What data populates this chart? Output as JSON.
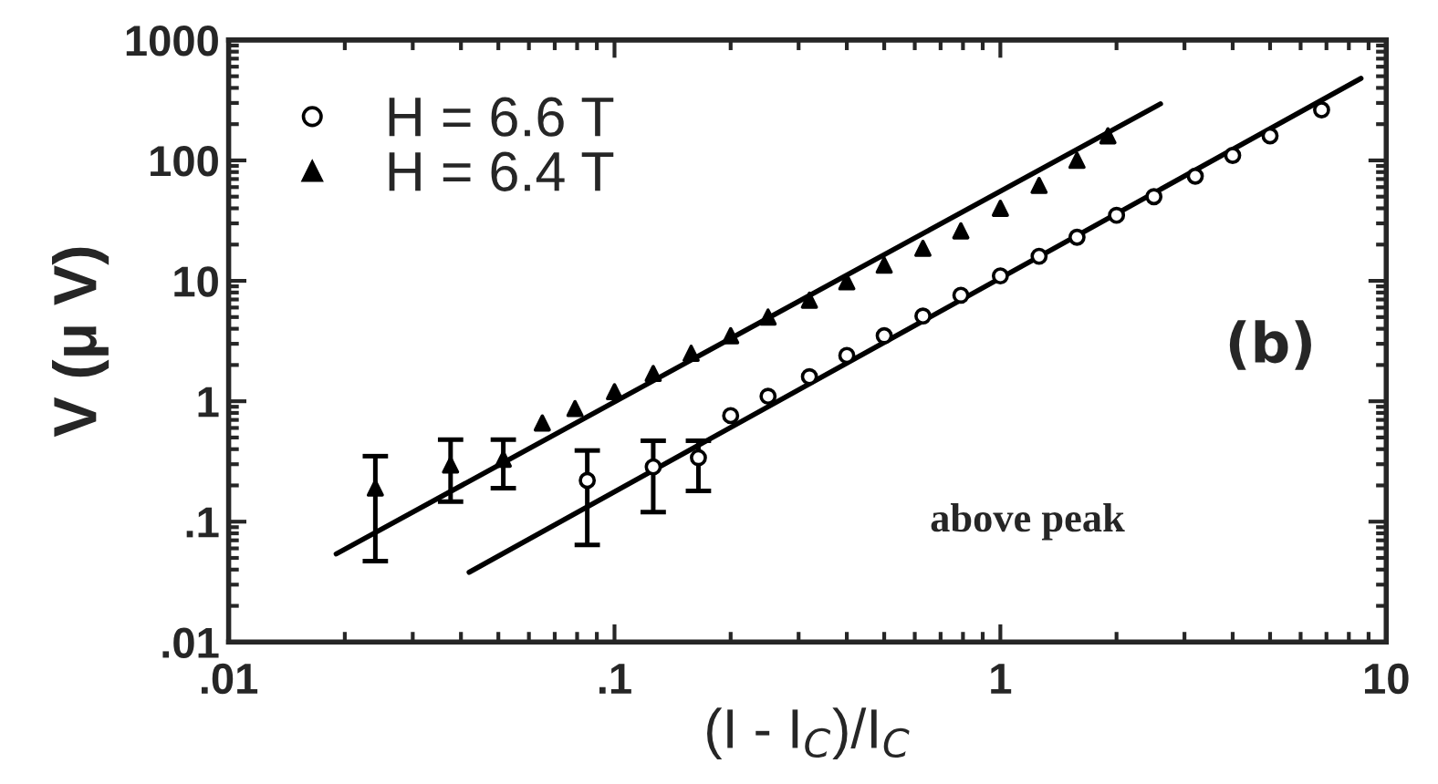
{
  "chart_data": {
    "type": "scatter",
    "xlabel": "(I - I$_{C}$)/I$_{C}$",
    "ylabel": "V (μ V)",
    "log": "xy",
    "grid": false,
    "legend": "top left",
    "xlim": [
      0.01,
      10
    ],
    "xticks": [
      {
        "value": 0.01,
        "label": ".01"
      },
      {
        "value": 0.1,
        "label": ".1"
      },
      1,
      10
    ],
    "ylim": [
      0.01,
      1000
    ],
    "yticks": [
      {
        "value": 0.01,
        "label": ".01"
      },
      {
        "value": 0.1,
        "label": ".1"
      },
      1,
      10,
      100,
      1000
    ],
    "annotations": [
      "(b)",
      "above peak"
    ],
    "series": [
      {
        "name": "H = 6.6 T",
        "marker": "circle",
        "color": "#000000",
        "x": [
          0.085,
          0.126,
          0.165,
          0.2,
          0.25,
          0.32,
          0.4,
          0.5,
          0.63,
          0.79,
          1,
          1.26,
          1.58,
          2,
          2.5,
          3.2,
          4,
          5,
          6.8
        ],
        "values": [
          0.22,
          0.285,
          0.34,
          0.76,
          1.1,
          1.6,
          2.4,
          3.5,
          5.1,
          7.6,
          11,
          16,
          23,
          35,
          50,
          74,
          110,
          160,
          263
        ],
        "errors": [
          [
            0.064,
            0.39
          ],
          [
            0.12,
            0.47
          ],
          [
            0.18,
            0.47
          ],
          null,
          null,
          null,
          null,
          null,
          null,
          null,
          null,
          null,
          null,
          null,
          null,
          null,
          null,
          null,
          null
        ]
      },
      {
        "name": "H = 6.4 T",
        "marker": "triangle",
        "color": "#000000",
        "x": [
          0.024,
          0.0376,
          0.0515,
          0.065,
          0.079,
          0.1,
          0.126,
          0.158,
          0.2,
          0.25,
          0.32,
          0.4,
          0.5,
          0.63,
          0.79,
          1,
          1.26,
          1.58,
          1.9
        ],
        "values": [
          0.19,
          0.295,
          0.33,
          0.66,
          0.87,
          1.2,
          1.7,
          2.5,
          3.5,
          5,
          6.9,
          9.8,
          13.5,
          18.6,
          26,
          40,
          62,
          100,
          160
        ],
        "errors": [
          [
            0.047,
            0.35
          ],
          [
            0.147,
            0.48
          ],
          [
            0.19,
            0.48
          ],
          null,
          null,
          null,
          null,
          null,
          null,
          null,
          null,
          null,
          null,
          null,
          null,
          null,
          null,
          null,
          null
        ]
      },
      {
        "type": "line",
        "marker": "none",
        "color": "#000000",
        "x": [
          0.042,
          8.6
        ],
        "values": [
          0.038,
          480
        ]
      },
      {
        "type": "line",
        "marker": "none",
        "color": "#000000",
        "x": [
          0.019,
          2.6
        ],
        "values": [
          0.054,
          295
        ]
      }
    ]
  }
}
